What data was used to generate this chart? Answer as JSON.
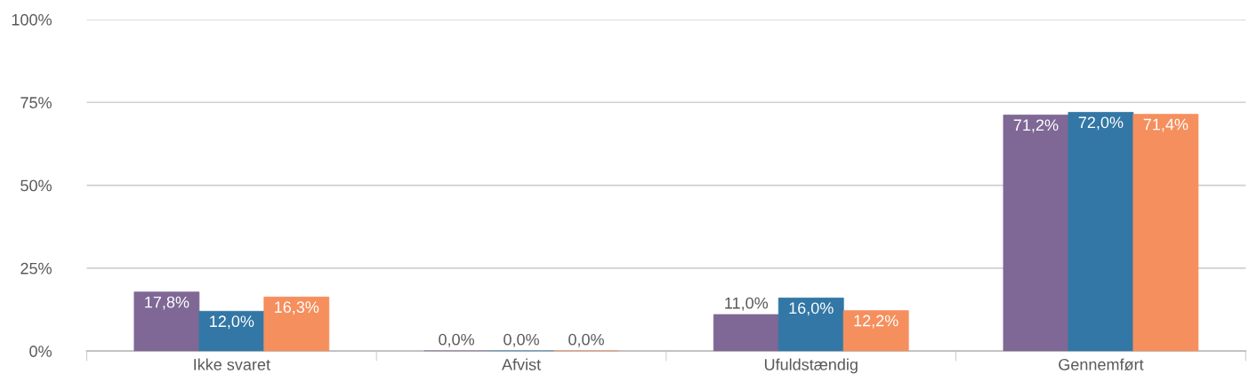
{
  "chart_data": {
    "type": "bar",
    "categories": [
      "Ikke svaret",
      "Afvist",
      "Ufuldstændig",
      "Gennemført"
    ],
    "series": [
      {
        "color": "#7f6895",
        "values": [
          17.8,
          0.0,
          11.0,
          71.2
        ],
        "value_labels": [
          "17,8%",
          "0,0%",
          "11,0%",
          "71,2%"
        ]
      },
      {
        "color": "#3277a5",
        "values": [
          12.0,
          0.0,
          16.0,
          72.0
        ],
        "value_labels": [
          "12,0%",
          "0,0%",
          "16,0%",
          "72,0%"
        ]
      },
      {
        "color": "#f58f5d",
        "values": [
          16.3,
          0.0,
          12.2,
          71.4
        ],
        "value_labels": [
          "16,3%",
          "0,0%",
          "12,2%",
          "71,4%"
        ]
      }
    ],
    "ylim": [
      0,
      100
    ],
    "yticks": [
      {
        "value": 0,
        "label": "0%"
      },
      {
        "value": 25,
        "label": "25%"
      },
      {
        "value": 50,
        "label": "50%"
      },
      {
        "value": 75,
        "label": "75%"
      },
      {
        "value": 100,
        "label": "100%"
      }
    ],
    "grid": "y"
  }
}
